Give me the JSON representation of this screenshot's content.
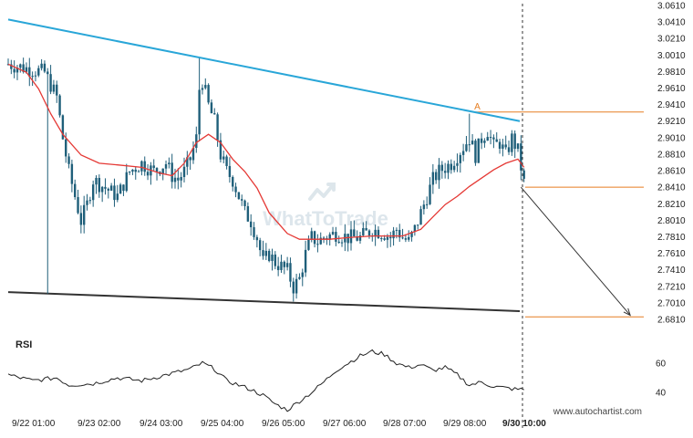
{
  "chart_data": {
    "type": "candlestick",
    "x_labels": [
      "9/22 01:00",
      "9/23 02:00",
      "9/24 03:00",
      "9/25 04:00",
      "9/26 05:00",
      "9/27 06:00",
      "9/28 07:00",
      "9/29 08:00",
      "9/30 10:00"
    ],
    "y_ticks": [
      "3.0610",
      "3.0410",
      "3.0210",
      "3.0010",
      "2.9810",
      "2.9610",
      "2.9410",
      "2.9210",
      "2.9010",
      "2.8810",
      "2.8610",
      "2.8410",
      "2.8210",
      "2.8010",
      "2.7810",
      "2.7610",
      "2.7410",
      "2.7210",
      "2.7010",
      "2.6810"
    ],
    "ylim": [
      2.681,
      3.061
    ],
    "price_path": [
      [
        0,
        2.99
      ],
      [
        3,
        2.985
      ],
      [
        6,
        2.98
      ],
      [
        8,
        2.95
      ],
      [
        9,
        2.9
      ],
      [
        10,
        2.86
      ],
      [
        11,
        2.83
      ],
      [
        12,
        2.8
      ],
      [
        13,
        2.82
      ],
      [
        14,
        2.85
      ],
      [
        16,
        2.84
      ],
      [
        18,
        2.83
      ],
      [
        20,
        2.86
      ],
      [
        22,
        2.87
      ],
      [
        24,
        2.86
      ],
      [
        26,
        2.87
      ],
      [
        27,
        2.855
      ],
      [
        28,
        2.85
      ],
      [
        29,
        2.86
      ],
      [
        30,
        2.875
      ],
      [
        31,
        2.9
      ],
      [
        31.5,
        2.96
      ],
      [
        32,
        2.97
      ],
      [
        33,
        2.94
      ],
      [
        34,
        2.92
      ],
      [
        35,
        2.88
      ],
      [
        36,
        2.86
      ],
      [
        37,
        2.85
      ],
      [
        38,
        2.83
      ],
      [
        39,
        2.81
      ],
      [
        40,
        2.8
      ],
      [
        41,
        2.78
      ],
      [
        42,
        2.75
      ],
      [
        43,
        2.76
      ],
      [
        44,
        2.75
      ],
      [
        45,
        2.745
      ],
      [
        46,
        2.74
      ],
      [
        47,
        2.72
      ],
      [
        48,
        2.73
      ],
      [
        49,
        2.76
      ],
      [
        50,
        2.78
      ],
      [
        51,
        2.775
      ],
      [
        52,
        2.78
      ],
      [
        54,
        2.785
      ],
      [
        56,
        2.78
      ],
      [
        58,
        2.78
      ],
      [
        60,
        2.79
      ],
      [
        62,
        2.785
      ],
      [
        63,
        2.78
      ],
      [
        64,
        2.79
      ],
      [
        65,
        2.78
      ],
      [
        66,
        2.775
      ],
      [
        67,
        2.79
      ],
      [
        68,
        2.81
      ],
      [
        69,
        2.83
      ],
      [
        70,
        2.85
      ],
      [
        71,
        2.86
      ],
      [
        72,
        2.865
      ],
      [
        73,
        2.87
      ],
      [
        74,
        2.88
      ],
      [
        75,
        2.89
      ],
      [
        76,
        2.9
      ],
      [
        77,
        2.88
      ],
      [
        78,
        2.9
      ],
      [
        79,
        2.91
      ],
      [
        80,
        2.89
      ],
      [
        81,
        2.895
      ],
      [
        82,
        2.88
      ],
      [
        83,
        2.9
      ],
      [
        84,
        2.885
      ],
      [
        84.4,
        2.87
      ],
      [
        84.8,
        2.85
      ],
      [
        85.2,
        2.842
      ]
    ],
    "extremes": [
      {
        "x": 6.5,
        "low": 2.712
      },
      {
        "x": 31.6,
        "high": 2.997
      },
      {
        "x": 47.0,
        "low": 2.705
      },
      {
        "x": 76.0,
        "high": 2.93
      }
    ],
    "ma_series": [
      [
        0,
        2.99
      ],
      [
        3,
        2.98
      ],
      [
        5,
        2.96
      ],
      [
        7,
        2.93
      ],
      [
        9,
        2.905
      ],
      [
        12,
        2.88
      ],
      [
        15,
        2.87
      ],
      [
        18,
        2.868
      ],
      [
        22,
        2.865
      ],
      [
        25,
        2.858
      ],
      [
        27,
        2.855
      ],
      [
        29,
        2.87
      ],
      [
        31,
        2.895
      ],
      [
        33,
        2.905
      ],
      [
        35,
        2.895
      ],
      [
        37,
        2.875
      ],
      [
        39,
        2.86
      ],
      [
        41,
        2.84
      ],
      [
        43,
        2.81
      ],
      [
        46,
        2.785
      ],
      [
        48,
        2.778
      ],
      [
        50,
        2.778
      ],
      [
        53,
        2.778
      ],
      [
        56,
        2.78
      ],
      [
        60,
        2.782
      ],
      [
        63,
        2.782
      ],
      [
        65,
        2.782
      ],
      [
        68,
        2.79
      ],
      [
        70,
        2.805
      ],
      [
        72,
        2.82
      ],
      [
        74,
        2.83
      ],
      [
        76,
        2.842
      ],
      [
        78,
        2.852
      ],
      [
        80,
        2.862
      ],
      [
        82,
        2.87
      ],
      [
        84,
        2.875
      ],
      [
        85,
        2.865
      ]
    ],
    "upper_line": {
      "x1": 0,
      "y1": 3.044,
      "x2": 84.3,
      "y2": 2.921
    },
    "lower_line": {
      "x1": 0,
      "y1": 2.714,
      "x2": 84.3,
      "y2": 2.691
    },
    "breakout_marker": {
      "label": "A",
      "x": 76.5,
      "price": 2.932
    },
    "breakout_level_price": 2.932,
    "current_level_price": 2.841,
    "target_level_price": 2.684,
    "target_arrow": {
      "x1": 84.5,
      "y1": 2.841,
      "x2": 102.5,
      "y2": 2.686
    },
    "rsi": {
      "label": "RSI",
      "ticks": [
        "60",
        "40"
      ],
      "ylim": [
        25,
        70
      ],
      "values": [
        [
          0,
          52
        ],
        [
          4,
          48
        ],
        [
          8,
          50
        ],
        [
          10,
          45
        ],
        [
          14,
          46
        ],
        [
          18,
          50
        ],
        [
          22,
          48
        ],
        [
          26,
          52
        ],
        [
          30,
          56
        ],
        [
          32,
          60
        ],
        [
          34,
          56
        ],
        [
          36,
          48
        ],
        [
          38,
          45
        ],
        [
          40,
          42
        ],
        [
          42,
          38
        ],
        [
          44,
          32
        ],
        [
          46,
          28
        ],
        [
          48,
          34
        ],
        [
          50,
          40
        ],
        [
          52,
          47
        ],
        [
          54,
          55
        ],
        [
          56,
          60
        ],
        [
          58,
          65
        ],
        [
          60,
          68
        ],
        [
          62,
          66
        ],
        [
          64,
          60
        ],
        [
          66,
          57
        ],
        [
          68,
          59
        ],
        [
          70,
          55
        ],
        [
          72,
          57
        ],
        [
          74,
          52
        ],
        [
          76,
          45
        ],
        [
          78,
          47
        ],
        [
          80,
          44
        ],
        [
          82,
          43
        ],
        [
          84,
          42
        ],
        [
          85,
          42
        ]
      ]
    },
    "colors": {
      "upper_trendline": "#29a6d8",
      "lower_trendline": "#333333",
      "moving_average": "#e53935",
      "candles": "#1f5f7a",
      "levels": "#e67e22",
      "arrow": "#333333",
      "rsi_line": "#222222"
    }
  },
  "watermark": {
    "text": "WhatToTrade"
  },
  "footer": {
    "source": "www.autochartist.com"
  }
}
